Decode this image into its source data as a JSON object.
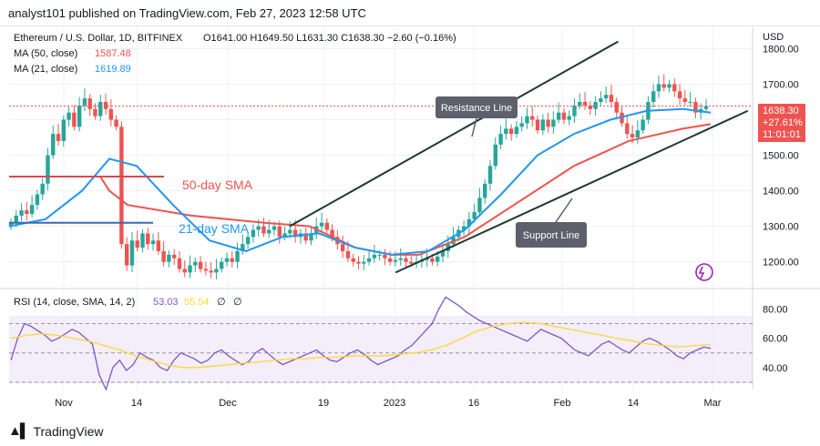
{
  "header": {
    "text": "analyst101 published on TradingView.com, Feb 27, 2023 12:58 UTC"
  },
  "footer": {
    "brand": "TradingView"
  },
  "colors": {
    "up": "#26a69a",
    "down": "#ef5350",
    "ma50": "#ef5350",
    "ma21": "#2196f3",
    "channel": "#1f3a2e",
    "rsi": "#7e57c2",
    "rsi_sma": "#fdd835",
    "grid": "#eef0f4",
    "bluebar": "#3a69b8",
    "redbar": "#d8494a"
  },
  "legend": {
    "symbol": "Ethereum / U.S. Dollar, 1D, BITFINEX",
    "ohlc": "O1641.00  H1649.50  L1631.30  C1638.30  −2.60 (−0.16%)",
    "ma50": {
      "label": "MA (50, close)",
      "value": "1587.48"
    },
    "ma21": {
      "label": "MA (21, close)",
      "value": "1619.89"
    }
  },
  "annotations": {
    "sma50": "50-day SMA",
    "sma21": "21-day SMA",
    "resistance": "Resistance Line",
    "support": "Support Line"
  },
  "price_axis": {
    "unit": "USD",
    "ticks": [
      "1800.00",
      "1700.00",
      "1600.00",
      "1500.00",
      "1400.00",
      "1300.00",
      "1200.00"
    ]
  },
  "price_label": {
    "price": "1638.30",
    "pct": "+27.61%",
    "countdown": "11:01:01"
  },
  "rsi_legend": {
    "label": "RSI (14, close, SMA, 14, 2)",
    "rsi": "53.03",
    "sma": "55.54",
    "ph1": "∅",
    "ph2": "∅"
  },
  "rsi_axis": {
    "ticks": [
      "80.00",
      "60.00",
      "40.00"
    ]
  },
  "x_axis": {
    "labels": [
      "Nov",
      "14",
      "Dec",
      "19",
      "2023",
      "16",
      "Feb",
      "14",
      "Mar"
    ]
  },
  "chart_data": {
    "type": "candlestick",
    "title": "Ethereum / U.S. Dollar, 1D, BITFINEX",
    "price_range": [
      1130,
      1860
    ],
    "close_series": [
      1310,
      1330,
      1345,
      1335,
      1360,
      1390,
      1420,
      1500,
      1560,
      1540,
      1600,
      1620,
      1580,
      1640,
      1660,
      1630,
      1610,
      1650,
      1630,
      1600,
      1580,
      1250,
      1190,
      1260,
      1240,
      1280,
      1250,
      1260,
      1230,
      1200,
      1220,
      1210,
      1180,
      1170,
      1190,
      1200,
      1180,
      1175,
      1170,
      1180,
      1200,
      1210,
      1200,
      1230,
      1250,
      1270,
      1290,
      1300,
      1280,
      1290,
      1300,
      1270,
      1280,
      1290,
      1270,
      1280,
      1260,
      1280,
      1300,
      1310,
      1290,
      1270,
      1250,
      1230,
      1210,
      1200,
      1195,
      1200,
      1210,
      1220,
      1220,
      1210,
      1200,
      1205,
      1210,
      1200,
      1195,
      1200,
      1205,
      1210,
      1200,
      1215,
      1230,
      1250,
      1270,
      1290,
      1300,
      1320,
      1340,
      1380,
      1420,
      1470,
      1530,
      1560,
      1575,
      1560,
      1580,
      1590,
      1610,
      1600,
      1570,
      1600,
      1580,
      1600,
      1620,
      1600,
      1610,
      1640,
      1650,
      1640,
      1630,
      1650,
      1660,
      1670,
      1650,
      1620,
      1590,
      1560,
      1550,
      1570,
      1600,
      1650,
      1680,
      1700,
      1690,
      1700,
      1680,
      1660,
      1650,
      1650,
      1620,
      1630,
      1638.3
    ],
    "ma50_points": [
      [
        0,
        1440
      ],
      [
        100,
        1440
      ],
      [
        110,
        1400
      ],
      [
        130,
        1360
      ],
      [
        200,
        1330
      ],
      [
        280,
        1310
      ],
      [
        330,
        1300
      ],
      [
        380,
        1240
      ],
      [
        420,
        1220
      ],
      [
        450,
        1220
      ],
      [
        500,
        1270
      ],
      [
        560,
        1370
      ],
      [
        620,
        1470
      ],
      [
        680,
        1540
      ],
      [
        740,
        1575
      ],
      [
        770,
        1587.48
      ]
    ],
    "ma21_points": [
      [
        0,
        1300
      ],
      [
        40,
        1320
      ],
      [
        80,
        1400
      ],
      [
        110,
        1490
      ],
      [
        140,
        1470
      ],
      [
        180,
        1360
      ],
      [
        220,
        1260
      ],
      [
        260,
        1230
      ],
      [
        300,
        1270
      ],
      [
        340,
        1280
      ],
      [
        380,
        1240
      ],
      [
        420,
        1220
      ],
      [
        460,
        1230
      ],
      [
        500,
        1290
      ],
      [
        540,
        1390
      ],
      [
        580,
        1500
      ],
      [
        620,
        1560
      ],
      [
        660,
        1600
      ],
      [
        700,
        1625
      ],
      [
        740,
        1630
      ],
      [
        770,
        1619.89
      ]
    ],
    "resistance_line": {
      "from": [
        1,
        1300
      ],
      "to": [
        98,
        1820
      ]
    },
    "support_line": {
      "from": [
        54,
        1170
      ],
      "to": [
        133,
        1625
      ]
    },
    "rsi": {
      "range": [
        25,
        92
      ],
      "values": [
        45,
        60,
        70,
        68,
        65,
        62,
        58,
        60,
        63,
        66,
        64,
        60,
        56,
        35,
        25,
        40,
        45,
        38,
        42,
        50,
        47,
        45,
        40,
        38,
        45,
        50,
        48,
        46,
        43,
        45,
        50,
        52,
        48,
        45,
        42,
        44,
        50,
        53,
        49,
        45,
        42,
        44,
        46,
        48,
        50,
        52,
        48,
        45,
        44,
        47,
        50,
        52,
        49,
        45,
        42,
        44,
        46,
        48,
        52,
        55,
        60,
        65,
        70,
        80,
        88,
        85,
        82,
        78,
        75,
        72,
        70,
        68,
        66,
        64,
        62,
        60,
        58,
        62,
        66,
        64,
        62,
        60,
        56,
        52,
        50,
        48,
        52,
        56,
        58,
        55,
        52,
        50,
        54,
        58,
        60,
        58,
        55,
        52,
        48,
        46,
        50,
        52,
        54,
        53.03
      ],
      "sma": [
        60,
        62,
        63,
        62,
        60,
        58,
        55,
        52,
        48,
        45,
        42,
        40,
        40,
        41,
        42,
        43,
        44,
        45,
        46,
        46,
        47,
        47,
        48,
        48,
        48,
        49,
        50,
        52,
        55,
        60,
        65,
        68,
        70,
        71,
        70,
        68,
        66,
        64,
        62,
        60,
        58,
        56,
        55,
        54,
        55,
        55.54
      ]
    }
  }
}
